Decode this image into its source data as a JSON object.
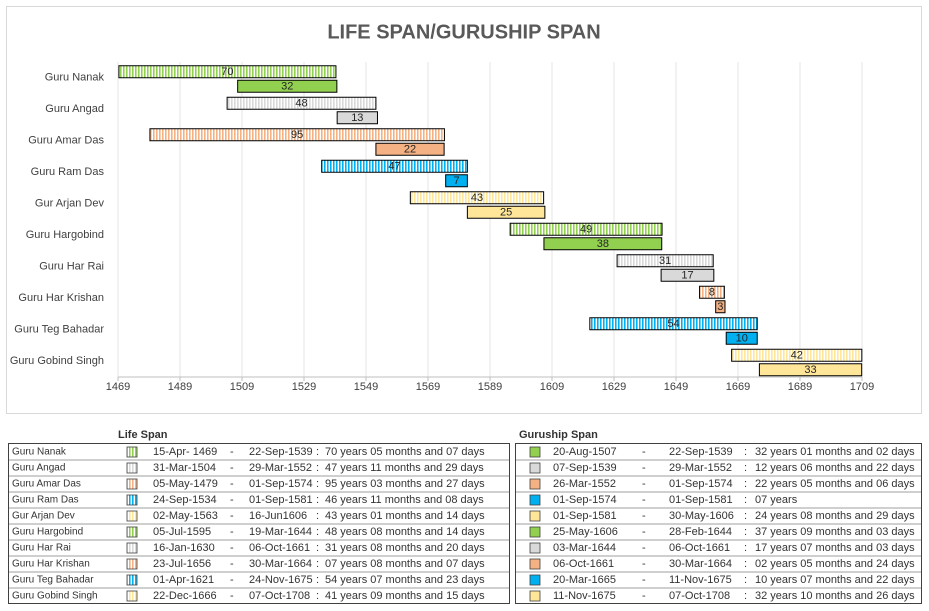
{
  "chart_data": {
    "type": "floating-bar",
    "title": "LIFE SPAN/GURUSHIP SPAN",
    "categories": [
      "Guru Nanak",
      "Guru Angad",
      "Guru Amar Das",
      "Guru Ram Das",
      "Gur Arjan Dev",
      "Guru Hargobind",
      "Guru Har Rai",
      "Guru Har Krishan",
      "Guru Teg Bahadar",
      "Guru Gobind Singh"
    ],
    "colors": [
      "#92d050",
      "#d9d9d9",
      "#f4b183",
      "#00b0f0",
      "#ffe699",
      "#92d050",
      "#d9d9d9",
      "#f4b183",
      "#00b0f0",
      "#ffe699"
    ],
    "series": [
      {
        "name": "Life Span",
        "starts": [
          1469.3,
          1504.2,
          1479.3,
          1534.7,
          1563.3,
          1595.5,
          1630.0,
          1656.6,
          1621.2,
          1666.95
        ],
        "values": [
          70,
          48,
          95,
          47,
          43,
          49,
          31,
          8,
          54,
          42
        ]
      },
      {
        "name": "Guruship Span",
        "starts": [
          1507.6,
          1539.7,
          1552.2,
          1574.7,
          1581.7,
          1606.4,
          1644.2,
          1661.8,
          1665.2,
          1675.9
        ],
        "values": [
          32,
          13,
          22,
          7,
          25,
          38,
          17,
          3,
          10,
          33
        ]
      }
    ],
    "xlim": [
      1469,
      1709
    ],
    "xticks": [
      1469,
      1489,
      1509,
      1529,
      1549,
      1569,
      1589,
      1609,
      1629,
      1649,
      1669,
      1689,
      1709
    ],
    "grid": true
  },
  "table": {
    "separators": [
      "-",
      ":"
    ],
    "sections": [
      {
        "title": "Life Span",
        "rows": [
          [
            "15-Apr- 1469",
            "22-Sep-1539",
            "70 years 05 months and 07 days"
          ],
          [
            "31-Mar-1504",
            "29-Mar-1552",
            "47 years 11 months and 29 days"
          ],
          [
            "05-May-1479",
            "01-Sep-1574",
            "95 years 03 months and 27 days"
          ],
          [
            "24-Sep-1534",
            "01-Sep-1581",
            "46 years 11 months and 08 days"
          ],
          [
            "02-May-1563",
            "16-Jun1606",
            "43 years 01 months and 14 days"
          ],
          [
            "05-Jul-1595",
            "19-Mar-1644",
            "48 years 08 months and 14 days"
          ],
          [
            "16-Jan-1630",
            "06-Oct-1661",
            "31 years 08 months and 20 days"
          ],
          [
            "23-Jul-1656",
            "30-Mar-1664",
            "07 years 08 months and 07 days"
          ],
          [
            "01-Apr-1621",
            "24-Nov-1675",
            "54 years 07 months and 23 days"
          ],
          [
            "22-Dec-1666",
            "07-Oct-1708",
            "41 years 09 months and 15 days"
          ]
        ]
      },
      {
        "title": "Guruship Span",
        "rows": [
          [
            "20-Aug-1507",
            "22-Sep-1539",
            "32 years 01 months and 02 days"
          ],
          [
            "07-Sep-1539",
            "29-Mar-1552",
            "12 years 06 months and 22 days"
          ],
          [
            "26-Mar-1552",
            "01-Sep-1574",
            "22 years 05 months and 06 days"
          ],
          [
            "01-Sep-1574",
            "01-Sep-1581",
            "07 years"
          ],
          [
            "01-Sep-1581",
            "30-May-1606",
            "24 years 08 months and 29 days"
          ],
          [
            "25-May-1606",
            "28-Feb-1644",
            "37 years 09 months and 03 days"
          ],
          [
            "03-Mar-1644",
            "06-Oct-1661",
            "17 years 07 months and 03 days"
          ],
          [
            "06-Oct-1661",
            "30-Mar-1664",
            "02 years 05 months and 24 days"
          ],
          [
            "20-Mar-1665",
            "11-Nov-1675",
            "10 years 07 months and 22 days"
          ],
          [
            "11-Nov-1675",
            "07-Oct-1708",
            "32 years 10 months and 26 days"
          ]
        ]
      }
    ]
  }
}
